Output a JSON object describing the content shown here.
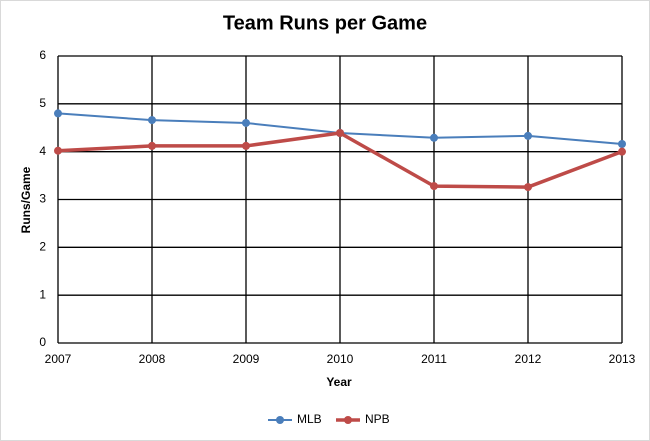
{
  "chart_data": {
    "type": "line",
    "title": "Team Runs per Game",
    "x_label": "Year",
    "y_label": "Runs/Game",
    "x": [
      2007,
      2008,
      2009,
      2010,
      2011,
      2012,
      2013
    ],
    "series": [
      {
        "name": "MLB",
        "color": "#4a7ebb",
        "values": [
          4.8,
          4.66,
          4.6,
          4.39,
          4.29,
          4.33,
          4.16
        ]
      },
      {
        "name": "NPB",
        "color": "#be4b48",
        "values": [
          4.02,
          4.12,
          4.12,
          4.39,
          3.28,
          3.26,
          4.0
        ]
      }
    ],
    "xlim": [
      2007,
      2013
    ],
    "xticks": [
      2007,
      2008,
      2009,
      2010,
      2011,
      2012,
      2013
    ],
    "ylim": [
      0,
      6
    ],
    "yticks": [
      0,
      1,
      2,
      3,
      4,
      5,
      6
    ],
    "grid": true,
    "legend": "bottom"
  }
}
